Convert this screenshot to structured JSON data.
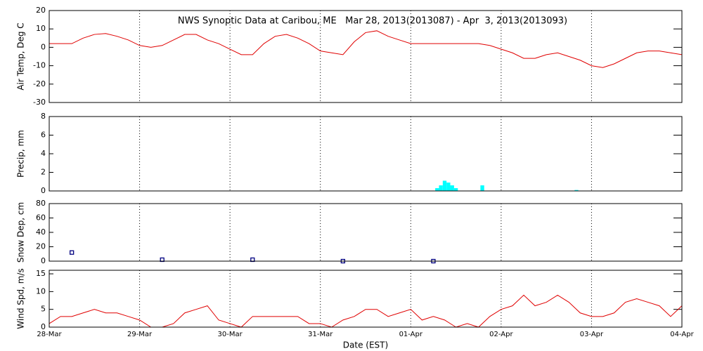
{
  "chart_data": [
    {
      "type": "line",
      "title": "NWS Synoptic Data at Caribou, ME   Mar 28, 2013(2013087) - Apr  3, 2013(2013093)",
      "ylabel": "Air Temp, Deg C",
      "ylim": [
        -30,
        20
      ],
      "yticks": [
        -30,
        -20,
        -10,
        0,
        10,
        20
      ],
      "color": "#e00000",
      "x": [
        "2013-03-28T00:00",
        "2013-03-28T03:00",
        "2013-03-28T06:00",
        "2013-03-28T09:00",
        "2013-03-28T12:00",
        "2013-03-28T15:00",
        "2013-03-28T18:00",
        "2013-03-28T21:00",
        "2013-03-29T00:00",
        "2013-03-29T03:00",
        "2013-03-29T06:00",
        "2013-03-29T09:00",
        "2013-03-29T12:00",
        "2013-03-29T15:00",
        "2013-03-29T18:00",
        "2013-03-29T21:00",
        "2013-03-30T00:00",
        "2013-03-30T03:00",
        "2013-03-30T06:00",
        "2013-03-30T09:00",
        "2013-03-30T12:00",
        "2013-03-30T15:00",
        "2013-03-30T18:00",
        "2013-03-30T21:00",
        "2013-03-31T00:00",
        "2013-03-31T03:00",
        "2013-03-31T06:00",
        "2013-03-31T09:00",
        "2013-03-31T12:00",
        "2013-03-31T15:00",
        "2013-03-31T18:00",
        "2013-03-31T21:00",
        "2013-04-01T00:00",
        "2013-04-01T03:00",
        "2013-04-01T06:00",
        "2013-04-01T09:00",
        "2013-04-01T12:00",
        "2013-04-01T15:00",
        "2013-04-01T18:00",
        "2013-04-01T21:00",
        "2013-04-02T00:00",
        "2013-04-02T03:00",
        "2013-04-02T06:00",
        "2013-04-02T09:00",
        "2013-04-02T12:00",
        "2013-04-02T15:00",
        "2013-04-02T18:00",
        "2013-04-02T21:00",
        "2013-04-03T00:00",
        "2013-04-03T03:00",
        "2013-04-03T06:00",
        "2013-04-03T09:00",
        "2013-04-03T12:00",
        "2013-04-03T15:00",
        "2013-04-03T18:00",
        "2013-04-03T21:00",
        "2013-04-04T00:00"
      ],
      "values": [
        2,
        2,
        2,
        5,
        7,
        7.5,
        6,
        4,
        1,
        0,
        1,
        4,
        7,
        7,
        4,
        2,
        -1,
        -4,
        -4,
        2,
        6,
        7,
        5,
        2,
        -2,
        -3,
        -4,
        3,
        8,
        9,
        6,
        4,
        2,
        2,
        2,
        2,
        2,
        2,
        2,
        1,
        -1,
        -3,
        -6,
        -6,
        -4,
        -3,
        -5,
        -7,
        -10,
        -11,
        -9,
        -6,
        -3,
        -2,
        -2,
        -3,
        -4
      ]
    },
    {
      "type": "bar",
      "ylabel": "Precip, mm",
      "ylim": [
        0,
        8
      ],
      "yticks": [
        0,
        2,
        4,
        6,
        8
      ],
      "color": "#00ffff",
      "x": [
        "2013-04-01T07:00",
        "2013-04-01T08:00",
        "2013-04-01T09:00",
        "2013-04-01T10:00",
        "2013-04-01T11:00",
        "2013-04-01T12:00",
        "2013-04-01T19:00",
        "2013-04-02T20:00"
      ],
      "values": [
        0.3,
        0.6,
        1.1,
        0.9,
        0.6,
        0.3,
        0.6,
        0.1
      ]
    },
    {
      "type": "scatter",
      "ylabel": "Snow Dep, cm",
      "ylim": [
        0,
        80
      ],
      "yticks": [
        0,
        20,
        40,
        60,
        80
      ],
      "color": "#000080",
      "x": [
        "2013-03-28T06:00",
        "2013-03-29T06:00",
        "2013-03-30T06:00",
        "2013-03-31T06:00",
        "2013-04-01T06:00"
      ],
      "values": [
        12,
        2,
        2,
        0,
        0
      ]
    },
    {
      "type": "line",
      "ylabel": "Wind Spd, m/s",
      "xlabel": "Date (EST)",
      "ylim": [
        0,
        16
      ],
      "yticks": [
        0,
        5,
        10,
        15
      ],
      "color": "#e00000",
      "xlim": [
        "2013-03-28T00:00",
        "2013-04-04T00:00"
      ],
      "xticks": [
        {
          "value": "2013-03-28T00:00",
          "label": "28-Mar"
        },
        {
          "value": "2013-03-29T00:00",
          "label": "29-Mar"
        },
        {
          "value": "2013-03-30T00:00",
          "label": "30-Mar"
        },
        {
          "value": "2013-03-31T00:00",
          "label": "31-Mar"
        },
        {
          "value": "2013-04-01T00:00",
          "label": "01-Apr"
        },
        {
          "value": "2013-04-02T00:00",
          "label": "02-Apr"
        },
        {
          "value": "2013-04-03T00:00",
          "label": "03-Apr"
        },
        {
          "value": "2013-04-04T00:00",
          "label": "04-Apr"
        }
      ],
      "x": [
        "2013-03-28T00:00",
        "2013-03-28T03:00",
        "2013-03-28T06:00",
        "2013-03-28T09:00",
        "2013-03-28T12:00",
        "2013-03-28T15:00",
        "2013-03-28T18:00",
        "2013-03-28T21:00",
        "2013-03-29T00:00",
        "2013-03-29T03:00",
        "2013-03-29T06:00",
        "2013-03-29T09:00",
        "2013-03-29T12:00",
        "2013-03-29T15:00",
        "2013-03-29T18:00",
        "2013-03-29T21:00",
        "2013-03-30T00:00",
        "2013-03-30T03:00",
        "2013-03-30T06:00",
        "2013-03-30T09:00",
        "2013-03-30T12:00",
        "2013-03-30T15:00",
        "2013-03-30T18:00",
        "2013-03-30T21:00",
        "2013-03-31T00:00",
        "2013-03-31T03:00",
        "2013-03-31T06:00",
        "2013-03-31T09:00",
        "2013-03-31T12:00",
        "2013-03-31T15:00",
        "2013-03-31T18:00",
        "2013-03-31T21:00",
        "2013-04-01T00:00",
        "2013-04-01T03:00",
        "2013-04-01T06:00",
        "2013-04-01T09:00",
        "2013-04-01T12:00",
        "2013-04-01T15:00",
        "2013-04-01T18:00",
        "2013-04-01T21:00",
        "2013-04-02T00:00",
        "2013-04-02T03:00",
        "2013-04-02T06:00",
        "2013-04-02T09:00",
        "2013-04-02T12:00",
        "2013-04-02T15:00",
        "2013-04-02T18:00",
        "2013-04-02T21:00",
        "2013-04-03T00:00",
        "2013-04-03T03:00",
        "2013-04-03T06:00",
        "2013-04-03T09:00",
        "2013-04-03T12:00",
        "2013-04-03T15:00",
        "2013-04-03T18:00",
        "2013-04-03T21:00",
        "2013-04-04T00:00"
      ],
      "values": [
        1,
        3,
        3,
        4,
        5,
        4,
        4,
        3,
        2,
        0,
        0,
        1,
        4,
        5,
        6,
        2,
        1,
        0,
        3,
        3,
        3,
        3,
        3,
        1,
        1,
        0,
        2,
        3,
        5,
        5,
        3,
        4,
        5,
        2,
        3,
        2,
        0,
        1,
        0,
        3,
        5,
        6,
        9,
        6,
        7,
        9,
        7,
        4,
        3,
        3,
        4,
        7,
        8,
        7,
        6,
        3,
        6
      ]
    }
  ]
}
